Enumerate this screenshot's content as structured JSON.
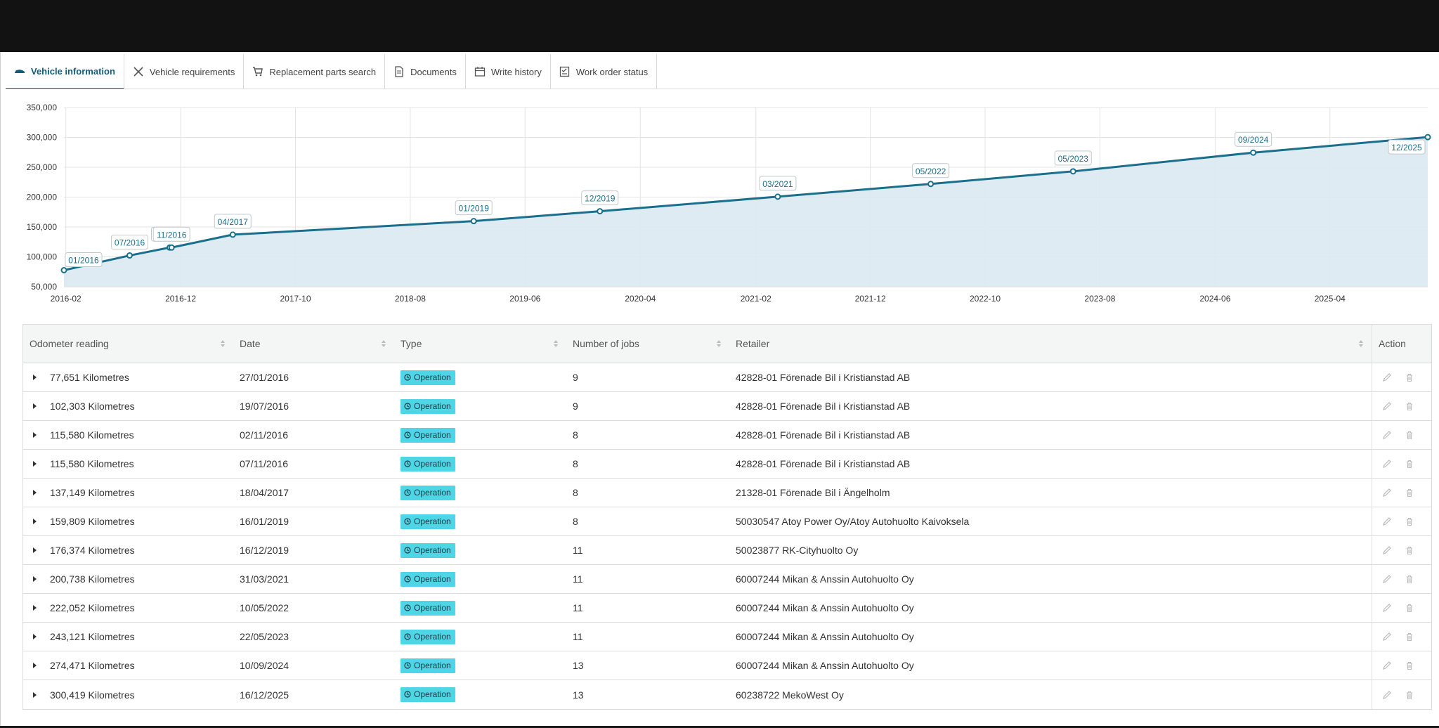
{
  "tabs": [
    {
      "label": "Vehicle information",
      "icon": "car-icon",
      "active": true
    },
    {
      "label": "Vehicle requirements",
      "icon": "tools-icon",
      "active": false
    },
    {
      "label": "Replacement parts search",
      "icon": "cart-icon",
      "active": false
    },
    {
      "label": "Documents",
      "icon": "document-icon",
      "active": false
    },
    {
      "label": "Write history",
      "icon": "calendar-icon",
      "active": false
    },
    {
      "label": "Work order status",
      "icon": "checklist-icon",
      "active": false
    }
  ],
  "chart_data": {
    "type": "area",
    "title": "",
    "xlabel": "",
    "ylabel": "",
    "ylim": [
      50000,
      350000
    ],
    "y_ticks": [
      "350,000",
      "300,000",
      "250,000",
      "200,000",
      "150,000",
      "100,000",
      "50,000"
    ],
    "x_ticks": [
      "2016-02",
      "2016-12",
      "2017-10",
      "2018-08",
      "2019-06",
      "2020-04",
      "2021-02",
      "2021-12",
      "2022-10",
      "2023-08",
      "2024-06",
      "2025-04"
    ],
    "x_tick_dates": [
      "2016-02-01",
      "2016-12-01",
      "2017-10-01",
      "2018-08-01",
      "2019-06-01",
      "2020-04-01",
      "2021-02-01",
      "2021-12-01",
      "2022-10-01",
      "2023-08-01",
      "2024-06-01",
      "2025-04-01"
    ],
    "xlim": [
      "2016-01-27",
      "2025-12-16"
    ],
    "grid": true,
    "colors": {
      "line": "#1a6f8c",
      "fill": "#dbe9f1",
      "point": "#1a6f8c"
    },
    "points": [
      {
        "date": "2016-01-27",
        "value": 77651,
        "label": "01/2016"
      },
      {
        "date": "2016-07-19",
        "value": 102303,
        "label": "07/2016"
      },
      {
        "date": "2016-11-02",
        "value": 115580,
        "label": "11/2016"
      },
      {
        "date": "2016-11-07",
        "value": 115580,
        "label": "11/2016"
      },
      {
        "date": "2017-04-18",
        "value": 137149,
        "label": "04/2017"
      },
      {
        "date": "2019-01-16",
        "value": 159809,
        "label": "01/2019"
      },
      {
        "date": "2019-12-16",
        "value": 176374,
        "label": "12/2019"
      },
      {
        "date": "2021-03-31",
        "value": 200738,
        "label": "03/2021"
      },
      {
        "date": "2022-05-10",
        "value": 222052,
        "label": "05/2022"
      },
      {
        "date": "2023-05-22",
        "value": 243121,
        "label": "05/2023"
      },
      {
        "date": "2024-09-10",
        "value": 274471,
        "label": "09/2024"
      },
      {
        "date": "2025-12-16",
        "value": 300419,
        "label": "12/2025"
      }
    ]
  },
  "table": {
    "headers": {
      "odometer": "Odometer reading",
      "date": "Date",
      "type": "Type",
      "jobs": "Number of jobs",
      "retailer": "Retailer",
      "action": "Action"
    },
    "rows": [
      {
        "odometer": "77,651 Kilometres",
        "date": "27/01/2016",
        "type": "Operation",
        "jobs": "9",
        "retailer": "42828-01 Förenade Bil i Kristianstad AB"
      },
      {
        "odometer": "102,303 Kilometres",
        "date": "19/07/2016",
        "type": "Operation",
        "jobs": "9",
        "retailer": "42828-01 Förenade Bil i Kristianstad AB"
      },
      {
        "odometer": "115,580 Kilometres",
        "date": "02/11/2016",
        "type": "Operation",
        "jobs": "8",
        "retailer": "42828-01 Förenade Bil i Kristianstad AB"
      },
      {
        "odometer": "115,580 Kilometres",
        "date": "07/11/2016",
        "type": "Operation",
        "jobs": "8",
        "retailer": "42828-01 Förenade Bil i Kristianstad AB"
      },
      {
        "odometer": "137,149 Kilometres",
        "date": "18/04/2017",
        "type": "Operation",
        "jobs": "8",
        "retailer": "21328-01 Förenade Bil i Ängelholm"
      },
      {
        "odometer": "159,809 Kilometres",
        "date": "16/01/2019",
        "type": "Operation",
        "jobs": "8",
        "retailer": "50030547 Atoy Power Oy/Atoy Autohuolto Kaivoksela"
      },
      {
        "odometer": "176,374 Kilometres",
        "date": "16/12/2019",
        "type": "Operation",
        "jobs": "11",
        "retailer": "50023877 RK-Cityhuolto Oy"
      },
      {
        "odometer": "200,738 Kilometres",
        "date": "31/03/2021",
        "type": "Operation",
        "jobs": "11",
        "retailer": "60007244 Mikan & Anssin Autohuolto Oy"
      },
      {
        "odometer": "222,052 Kilometres",
        "date": "10/05/2022",
        "type": "Operation",
        "jobs": "11",
        "retailer": "60007244 Mikan & Anssin Autohuolto Oy"
      },
      {
        "odometer": "243,121 Kilometres",
        "date": "22/05/2023",
        "type": "Operation",
        "jobs": "11",
        "retailer": "60007244 Mikan & Anssin Autohuolto Oy"
      },
      {
        "odometer": "274,471 Kilometres",
        "date": "10/09/2024",
        "type": "Operation",
        "jobs": "13",
        "retailer": "60007244 Mikan & Anssin Autohuolto Oy"
      },
      {
        "odometer": "300,419 Kilometres",
        "date": "16/12/2025",
        "type": "Operation",
        "jobs": "13",
        "retailer": "60238722 MekoWest Oy"
      }
    ]
  },
  "colors": {
    "accent": "#135c7a",
    "badge": "#4fd6e6",
    "topbar": "#121212"
  }
}
